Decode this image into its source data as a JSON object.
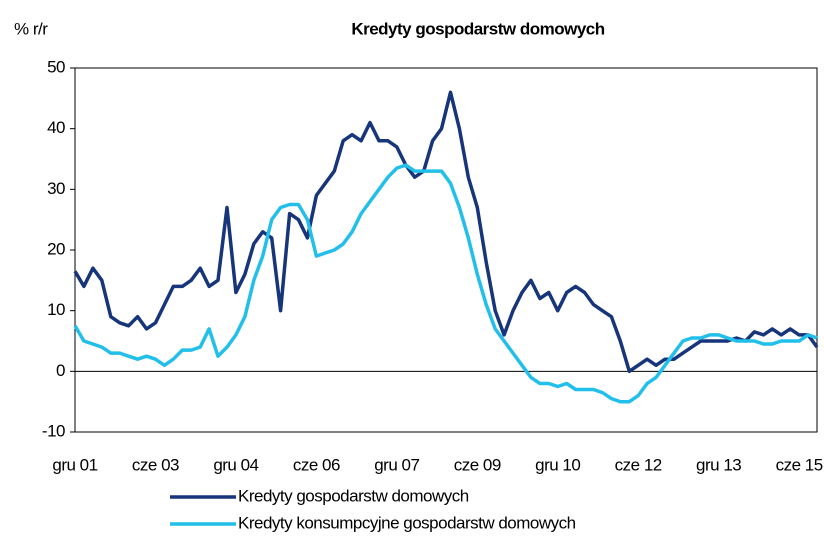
{
  "chart_data": {
    "type": "line",
    "title": "Kredyty gospodarstw domowych",
    "y_label": "% r/r",
    "categories": [
      "gru 01",
      null,
      null,
      null,
      null,
      null,
      null,
      null,
      null,
      "cze 03",
      null,
      null,
      null,
      null,
      null,
      null,
      null,
      null,
      "gru 04",
      null,
      null,
      null,
      null,
      null,
      null,
      null,
      null,
      "cze 06",
      null,
      null,
      null,
      null,
      null,
      null,
      null,
      null,
      "gru 07",
      null,
      null,
      null,
      null,
      null,
      null,
      null,
      null,
      "cze 09",
      null,
      null,
      null,
      null,
      null,
      null,
      null,
      null,
      "gru 10",
      null,
      null,
      null,
      null,
      null,
      null,
      null,
      null,
      "cze 12",
      null,
      null,
      null,
      null,
      null,
      null,
      null,
      null,
      "gru 13",
      null,
      null,
      null,
      null,
      null,
      null,
      null,
      null,
      "cze 15",
      null,
      null
    ],
    "series": [
      {
        "name": "Kredyty gospodarstw domowych",
        "color": "#17357a",
        "values": [
          16.5,
          14,
          17,
          15,
          9,
          8,
          7.5,
          9,
          7,
          8,
          11,
          14,
          14,
          15,
          17,
          14,
          15,
          27,
          13,
          16,
          21,
          23,
          22,
          10,
          26,
          25,
          22,
          29,
          31,
          33,
          38,
          39,
          38,
          41,
          38,
          38,
          37,
          34,
          32,
          33,
          38,
          40,
          46,
          40,
          32,
          27,
          18,
          10,
          6,
          10,
          13,
          15,
          12,
          13,
          10,
          13,
          14,
          13,
          11,
          10,
          9,
          5,
          0,
          1,
          2,
          1,
          2,
          2,
          3,
          4,
          5,
          5,
          5,
          5,
          5.5,
          5,
          6.5,
          6,
          7,
          6,
          7,
          6,
          6,
          4
        ]
      },
      {
        "name": "Kredyty konsumpcyjne gospodarstw domowych",
        "color": "#21bfea",
        "values": [
          7.5,
          5,
          4.5,
          4,
          3,
          3,
          2.5,
          2,
          2.5,
          2,
          1,
          2,
          3.5,
          3.5,
          4,
          7,
          2.5,
          4,
          6,
          9,
          15,
          19,
          25,
          27,
          27.5,
          27.5,
          25,
          19,
          19.5,
          20,
          21,
          23,
          26,
          28,
          30,
          32,
          33.5,
          34,
          33,
          33,
          33,
          33,
          31,
          27,
          22,
          16,
          11,
          7,
          5,
          3,
          1,
          -1,
          -2,
          -2,
          -2.5,
          -2,
          -3,
          -3,
          -3,
          -3.5,
          -4.5,
          -5,
          -5,
          -4,
          -2,
          -1,
          1,
          3,
          5,
          5.5,
          5.5,
          6,
          6,
          5.5,
          5,
          5,
          5,
          4.5,
          4.5,
          5,
          5,
          5,
          6,
          5.5
        ]
      }
    ],
    "ylim": [
      -10,
      50
    ],
    "yticks": [
      -10,
      0,
      10,
      20,
      30,
      40,
      50
    ]
  }
}
